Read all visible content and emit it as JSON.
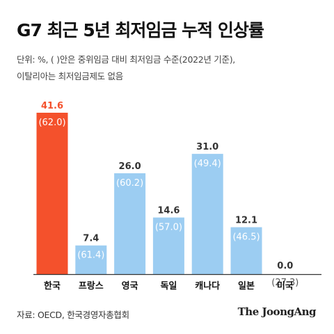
{
  "chart_data": {
    "type": "bar",
    "title": "G7 최근 5년 최저임금 누적 인상률",
    "subtitle_lines": [
      "단위: %, (  )안은 중위임금 대비 최저임금 수준(2022년 기준),",
      "이탈리아는 최저임금제도 없음"
    ],
    "categories": [
      "한국",
      "프랑스",
      "영국",
      "독일",
      "캐나다",
      "일본",
      "미국"
    ],
    "values": [
      41.6,
      7.4,
      26.0,
      14.6,
      31.0,
      12.1,
      0.0
    ],
    "value_labels": [
      "41.6",
      "7.4",
      "26.0",
      "14.6",
      "31.0",
      "12.1",
      "0.0"
    ],
    "secondary_labels": [
      "(62.0)",
      "(61.4)",
      "(60.2)",
      "(57.0)",
      "(49.4)",
      "(46.5)",
      "(27.3)"
    ],
    "highlight_index": 0,
    "ylim": [
      0,
      45
    ],
    "colors": {
      "highlight": "#f4512c",
      "bar": "#9ccdf2",
      "highlight_text": "#f4512c",
      "value_text": "#333333",
      "inner_text": "#ffffff",
      "outer_text": "#555555",
      "axis": "#333333"
    }
  },
  "footer": {
    "source": "자료: OECD, 한국경영자총협회",
    "brand": "The JoongAng"
  }
}
